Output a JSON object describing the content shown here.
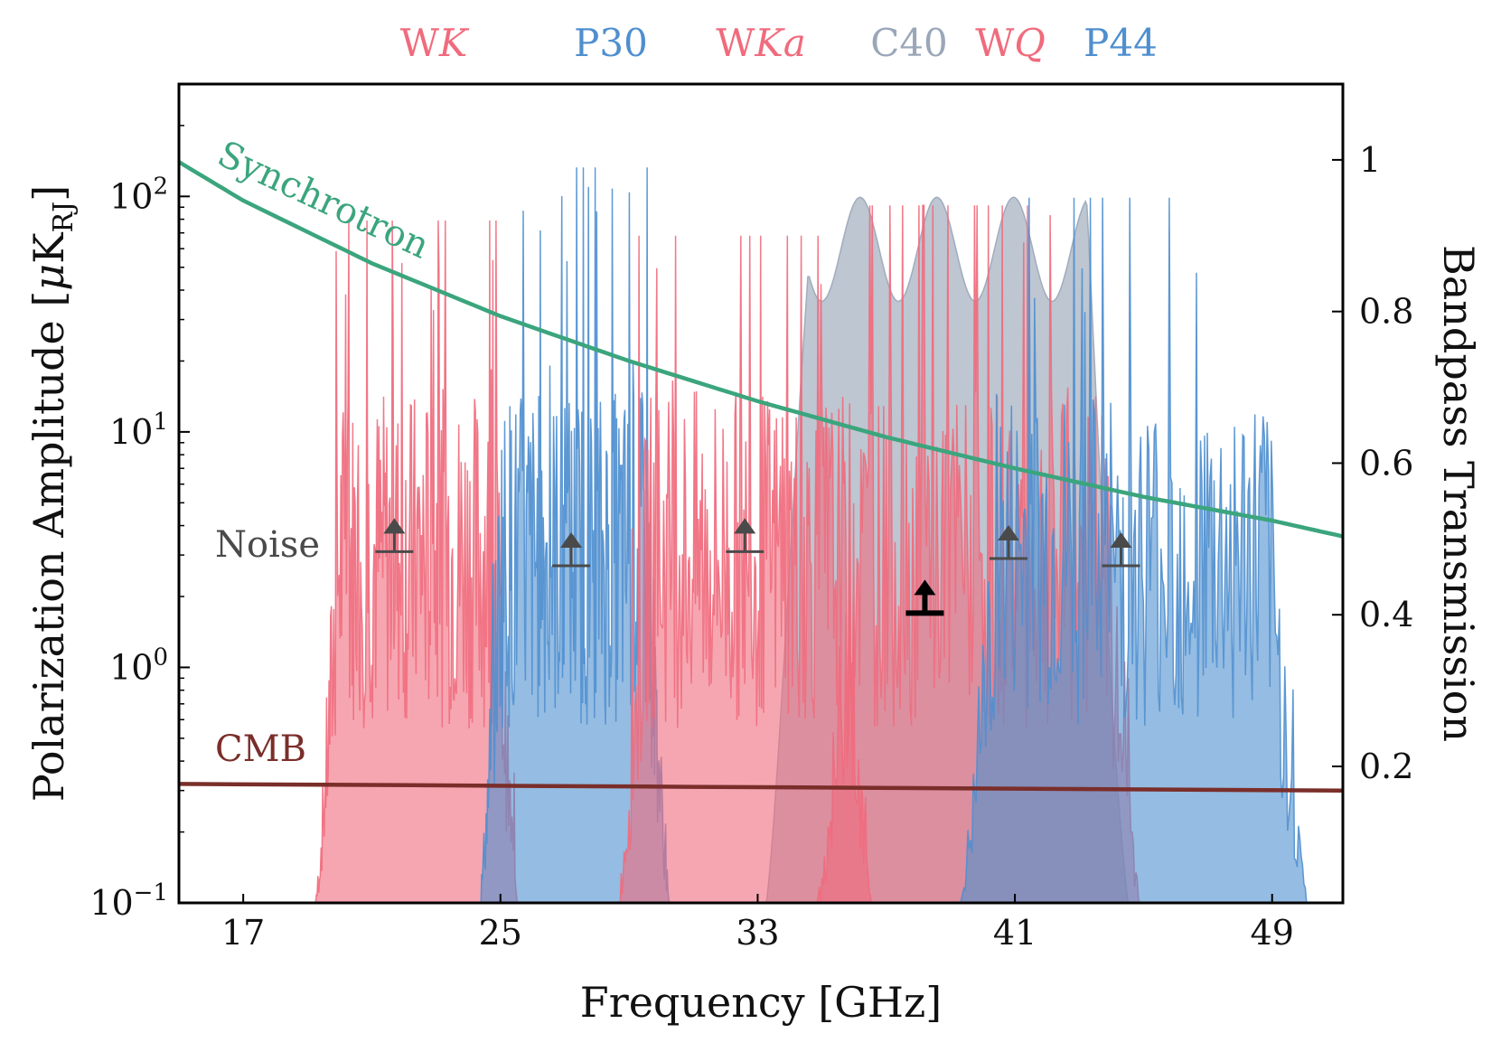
{
  "chart_data": {
    "type": "area",
    "xlabel": "Frequency [GHz]",
    "ylabel_left": "Polarization Amplitude [μK_RJ]",
    "ylabel_left_parts": {
      "prefix": "Polarization Amplitude [",
      "mu": "μ",
      "unit": "K",
      "sub": "RJ",
      "suffix": "]"
    },
    "ylabel_right": "Bandpass Transmission",
    "xlim": [
      15,
      51.2
    ],
    "ylim_left": [
      0.1,
      300
    ],
    "ylim_right": [
      0.02,
      1.1
    ],
    "x_ticks": [
      17,
      25,
      33,
      41,
      49
    ],
    "x_tick_labels": [
      "17",
      "25",
      "33",
      "41",
      "49"
    ],
    "y_left_ticks": [
      0.1,
      1,
      10,
      100
    ],
    "y_left_tick_labels": [
      {
        "base": "10",
        "exp": "−1"
      },
      {
        "base": "10",
        "exp": "0"
      },
      {
        "base": "10",
        "exp": "1"
      },
      {
        "base": "10",
        "exp": "2"
      }
    ],
    "y_right_ticks": [
      0.2,
      0.4,
      0.6,
      0.8,
      1.0
    ],
    "y_right_tick_labels": [
      "0.2",
      "0.4",
      "0.6",
      "0.8",
      "1"
    ],
    "colors": {
      "W": "#f06b7d",
      "P": "#4f8fcf",
      "C": "#9aa7b8",
      "synchrotron": "#3ba57d",
      "cmb": "#7a2e2a",
      "noise": "#4a4a4a"
    },
    "bands": [
      {
        "name": "WK",
        "family": "W",
        "range": [
          19.2,
          25.6
        ],
        "peak": 0.92
      },
      {
        "name": "P30",
        "family": "P",
        "range": [
          24.3,
          30.3
        ],
        "peak": 0.99
      },
      {
        "name": "WKa",
        "family": "W",
        "range": [
          28.6,
          36.6
        ],
        "peak": 0.9
      },
      {
        "name": "C40",
        "family": "C",
        "range": [
          33.2,
          44.6
        ],
        "peak": 0.98
      },
      {
        "name": "WQ",
        "family": "W",
        "range": [
          34.8,
          45.0
        ],
        "peak": 0.94
      },
      {
        "name": "P44",
        "family": "P",
        "range": [
          39.2,
          50.2
        ],
        "peak": 0.95
      }
    ],
    "band_labels": [
      {
        "main": "W",
        "italic": "K",
        "family": "W"
      },
      {
        "main": "P30",
        "italic": "",
        "family": "P"
      },
      {
        "main": "W",
        "italic": "Ka",
        "family": "W"
      },
      {
        "main": "C40",
        "italic": "",
        "family": "C"
      },
      {
        "main": "W",
        "italic": "Q",
        "family": "W"
      },
      {
        "main": "P44",
        "italic": "",
        "family": "P"
      }
    ],
    "series": [
      {
        "name": "Synchrotron",
        "x": [
          15,
          17,
          21,
          25,
          29,
          33,
          37,
          41,
          45,
          49,
          51.2
        ],
        "values": [
          140,
          96,
          52,
          31,
          20,
          13.5,
          9.5,
          7.0,
          5.3,
          4.2,
          3.6
        ]
      },
      {
        "name": "CMB",
        "x": [
          15,
          51.2
        ],
        "values": [
          0.32,
          0.3
        ]
      }
    ],
    "noise": [
      {
        "x": 21.7,
        "y": 3.1,
        "bold": false
      },
      {
        "x": 27.2,
        "y": 2.7,
        "bold": false
      },
      {
        "x": 32.6,
        "y": 3.1,
        "bold": false
      },
      {
        "x": 38.2,
        "y": 1.7,
        "bold": true
      },
      {
        "x": 40.8,
        "y": 2.9,
        "bold": false
      },
      {
        "x": 44.3,
        "y": 2.7,
        "bold": false
      }
    ],
    "annotations": {
      "synchrotron": "Synchrotron",
      "cmb": "CMB",
      "noise": "Noise"
    }
  }
}
